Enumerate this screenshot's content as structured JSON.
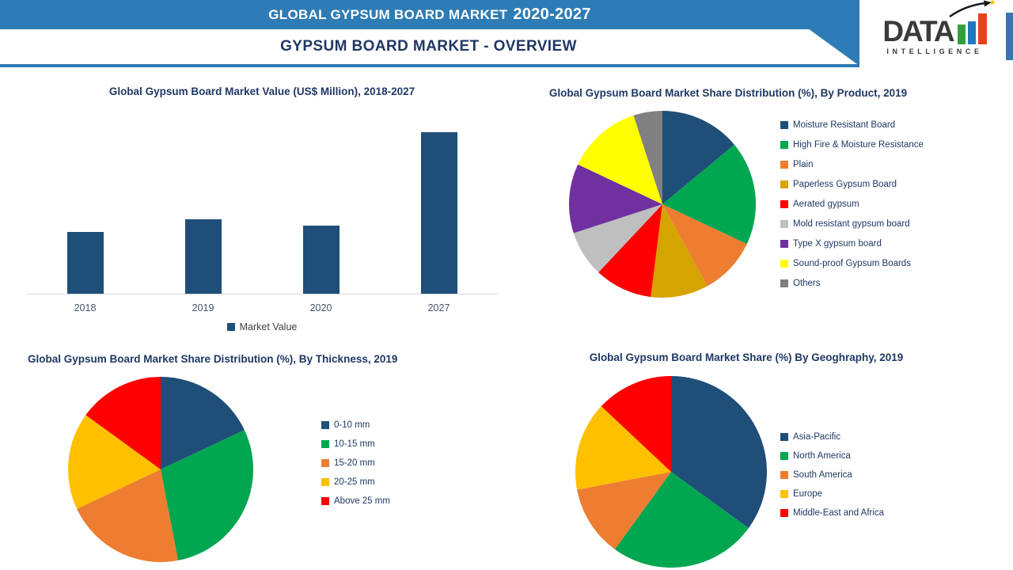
{
  "banner": {
    "title_main": "GLOBAL GYPSUM BOARD MARKET",
    "title_years": "2020-2027",
    "subtitle": "GYPSUM BOARD MARKET - OVERVIEW"
  },
  "logo": {
    "text": "DATA",
    "subtext": "INTELLIGENCE",
    "star_icon": "★"
  },
  "colors": {
    "banner_blue": "#2E7CB5",
    "heading_navy": "#1F3864",
    "bar_navy": "#1F4E79",
    "axis_line_gray": "#D9D9D9",
    "axis_label_gray": "#44546A",
    "accent_strip_blue": "#3B74AE",
    "logo_green": "#2FA13C",
    "logo_blue": "#1E78BE",
    "logo_red": "#E8401F",
    "logo_star_gold": "#FFC000"
  },
  "chart_data": [
    {
      "type": "bar",
      "title": "Global Gypsum Board Market Value (US$ Million), 2018-2027",
      "categories": [
        "2018",
        "2019",
        "2020",
        "2027"
      ],
      "values": [
        38,
        46,
        42,
        100
      ],
      "ylim": [
        0,
        100
      ],
      "y_axis_labels_visible": false,
      "grid": false,
      "bar_color": "#1F4E79",
      "legend": [
        "Market Value"
      ],
      "legend_position": "bottom"
    },
    {
      "type": "pie",
      "title": "Global Gypsum Board Market Share Distribution (%), By Product, 2019",
      "labels": [
        "Moisture Resistant Board",
        "High Fire & Moisture Resistance",
        "Plain",
        "Paperless Gypsum Board",
        "Aerated gypsum",
        "Mold resistant gypsum board",
        "Type X gypsum board",
        "Sound-proof Gypsum Boards",
        "Others"
      ],
      "values": [
        14,
        18,
        10,
        10,
        10,
        8,
        12,
        13,
        5
      ],
      "colors": [
        "#1F4E79",
        "#00A650",
        "#ED7D31",
        "#D6A400",
        "#FF0000",
        "#BFBFBF",
        "#7030A0",
        "#FFFF00",
        "#808080"
      ],
      "start_angle_deg": 0,
      "direction": "clockwise",
      "legend_position": "right"
    },
    {
      "type": "pie",
      "title": "Global Gypsum Board Market Share Distribution (%), By Thickness, 2019",
      "labels": [
        "0-10 mm",
        "10-15 mm",
        "15-20 mm",
        "20-25 mm",
        "Above 25 mm"
      ],
      "values": [
        18,
        29,
        21,
        17,
        15
      ],
      "colors": [
        "#1F4E79",
        "#00A650",
        "#ED7D31",
        "#FFC000",
        "#FF0000"
      ],
      "start_angle_deg": 0,
      "direction": "clockwise",
      "legend_position": "right"
    },
    {
      "type": "pie",
      "title": "Global Gypsum Board Market Share (%) By Geoghraphy, 2019",
      "labels": [
        "Asia-Pacific",
        "North America",
        "South America",
        "Europe",
        "Middle-East and Africa"
      ],
      "values": [
        35,
        25,
        12,
        15,
        13
      ],
      "colors": [
        "#1F4E79",
        "#00A650",
        "#ED7D31",
        "#FFC000",
        "#FF0000"
      ],
      "start_angle_deg": 0,
      "direction": "clockwise",
      "legend_position": "right"
    }
  ]
}
